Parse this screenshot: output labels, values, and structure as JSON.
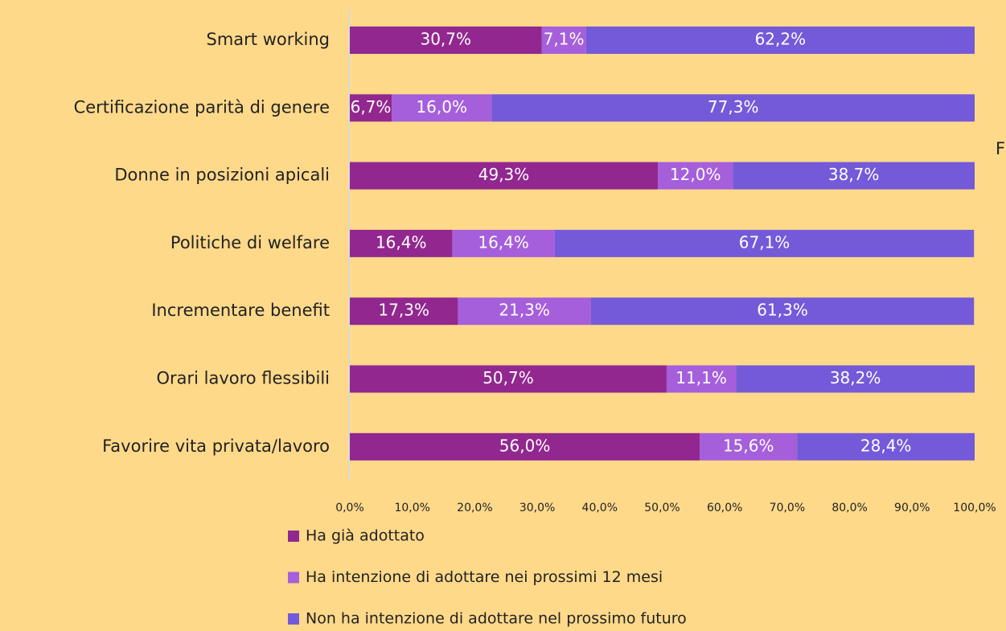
{
  "chart_data": {
    "type": "stacked-bar-horizontal",
    "categories": [
      "Smart working",
      "Certificazione parità di genere",
      "Donne in posizioni apicali",
      "Politiche di welfare",
      "Incrementare benefit",
      "Orari lavoro flessibili",
      "Favorire vita privata/lavoro"
    ],
    "series": [
      {
        "name": "Ha già adottato",
        "color": "#92278f",
        "values": [
          30.7,
          6.7,
          49.3,
          16.4,
          17.3,
          50.7,
          56.0
        ],
        "value_labels": [
          "30,7%",
          "6,7%",
          "49,3%",
          "16,4%",
          "17,3%",
          "50,7%",
          "56,0%"
        ]
      },
      {
        "name": "Ha intenzione di adottare nei prossimi 12 mesi",
        "color": "#a55fdb",
        "values": [
          7.1,
          16.0,
          12.0,
          16.4,
          21.3,
          11.1,
          15.6
        ],
        "value_labels": [
          "7,1%",
          "16,0%",
          "12,0%",
          "16,4%",
          "21,3%",
          "11,1%",
          "15,6%"
        ]
      },
      {
        "name": "Non ha intenzione di adottare nel prossimo futuro",
        "color": "#745ad9",
        "values": [
          62.2,
          77.3,
          38.7,
          67.1,
          61.3,
          38.2,
          28.4
        ],
        "value_labels": [
          "62,2%",
          "77,3%",
          "38,7%",
          "67,1%",
          "61,3%",
          "38,2%",
          "28,4%"
        ]
      }
    ],
    "xlim": [
      0,
      100
    ],
    "xticks": [
      {
        "value": 0,
        "label": "0,0%"
      },
      {
        "value": 10,
        "label": "10,0%"
      },
      {
        "value": 20,
        "label": "20,0%"
      },
      {
        "value": 30,
        "label": "30,0%"
      },
      {
        "value": 40,
        "label": "40,0%"
      },
      {
        "value": 50,
        "label": "50,0%"
      },
      {
        "value": 60,
        "label": "60,0%"
      },
      {
        "value": 70,
        "label": "70,0%"
      },
      {
        "value": 80,
        "label": "80,0%"
      },
      {
        "value": 90,
        "label": "90,0%"
      },
      {
        "value": 100,
        "label": "100,0%"
      }
    ],
    "annotation": "F",
    "legend": "bottom-left"
  }
}
